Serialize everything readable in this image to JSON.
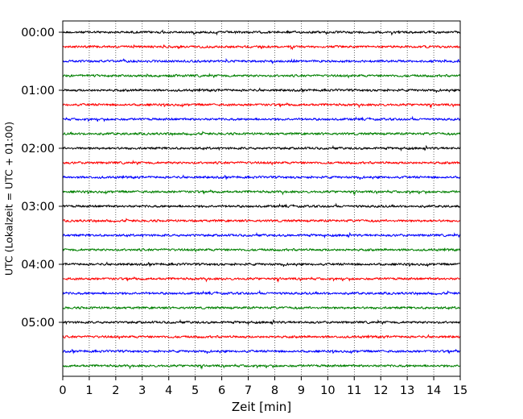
{
  "chart_data": {
    "type": "line",
    "title": "",
    "xlabel": "Zeit  [min]",
    "ylabel": "UTC (Lokalzeit = UTC + 01:00)",
    "xlim": [
      0,
      15
    ],
    "x_ticks": [
      "0",
      "1",
      "2",
      "3",
      "4",
      "5",
      "6",
      "7",
      "8",
      "9",
      "10",
      "11",
      "12",
      "13",
      "14",
      "15"
    ],
    "y_tick_labels": [
      "00:00",
      "01:00",
      "02:00",
      "03:00",
      "04:00",
      "05:00"
    ],
    "grid": "vertical dotted lines at each minute",
    "legend": "none",
    "trace_interval_minutes": 15,
    "trace_count": 24,
    "color_cycle": [
      "#000000",
      "#ff0000",
      "#0000ff",
      "#008000"
    ],
    "series_description": "seismogram helicorder; each row is 15 minutes of ground-motion signal, small amplitude noise around a baseline"
  }
}
